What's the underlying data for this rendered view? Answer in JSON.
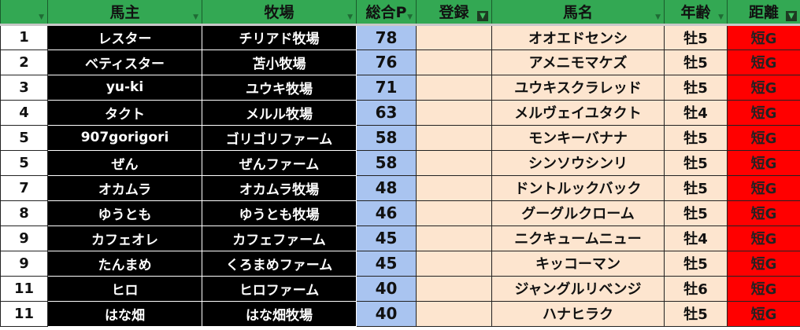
{
  "headers": [
    {
      "label": "",
      "filter": "filter-icon",
      "active": false
    },
    {
      "label": "馬主",
      "filter": "filter-icon",
      "active": false
    },
    {
      "label": "牧場",
      "filter": "filter-icon",
      "active": false
    },
    {
      "label": "総合P",
      "filter": "filter-icon",
      "active": false
    },
    {
      "label": "登録",
      "filter": "filter-active-icon",
      "active": true
    },
    {
      "label": "馬名",
      "filter": "filter-icon",
      "active": false
    },
    {
      "label": "年齢",
      "filter": "filter-icon",
      "active": false
    },
    {
      "label": "距離",
      "filter": "filter-active-icon",
      "active": true
    }
  ],
  "rows": [
    [
      "1",
      "レスター",
      "チリアド牧場",
      "78",
      "",
      "オオエドセンシ",
      "牡5",
      "短G"
    ],
    [
      "2",
      "ベティスター",
      "苫小牧場",
      "76",
      "",
      "アメニモマケズ",
      "牡5",
      "短G"
    ],
    [
      "3",
      "yu-ki",
      "ユウキ牧場",
      "71",
      "",
      "ユウキスクラレッド",
      "牡5",
      "短G"
    ],
    [
      "4",
      "タクト",
      "メルル牧場",
      "63",
      "",
      "メルヴェイユタクト",
      "牡4",
      "短G"
    ],
    [
      "5",
      "907gorigori",
      "ゴリゴリファーム",
      "58",
      "",
      "モンキーバナナ",
      "牡5",
      "短G"
    ],
    [
      "5",
      "ぜん",
      "ぜんファーム",
      "58",
      "",
      "シンソウシンリ",
      "牡5",
      "短G"
    ],
    [
      "7",
      "オカムラ",
      "オカムラ牧場",
      "48",
      "",
      "ドントルックバック",
      "牡5",
      "短G"
    ],
    [
      "8",
      "ゆうとも",
      "ゆうとも牧場",
      "46",
      "",
      "グーグルクローム",
      "牡5",
      "短G"
    ],
    [
      "9",
      "カフェオレ",
      "カフェファーム",
      "45",
      "",
      "ニクキュームニュー",
      "牡4",
      "短G"
    ],
    [
      "9",
      "たんまめ",
      "くろまめファーム",
      "45",
      "",
      "キッコーマン",
      "牡5",
      "短G"
    ],
    [
      "11",
      "ヒロ",
      "ヒロファーム",
      "40",
      "",
      "ジャングルリベンジ",
      "牡6",
      "短G"
    ],
    [
      "11",
      "はな畑",
      "はな畑牧場",
      "40",
      "",
      "ハナヒラク",
      "牡5",
      "短G"
    ]
  ],
  "colors": {
    "header": "#33a853",
    "owner_bg": "#000000",
    "points_bg": "#a9c4f0",
    "horse_bg": "#fde5cf",
    "distance_bg": "#ff0000"
  }
}
